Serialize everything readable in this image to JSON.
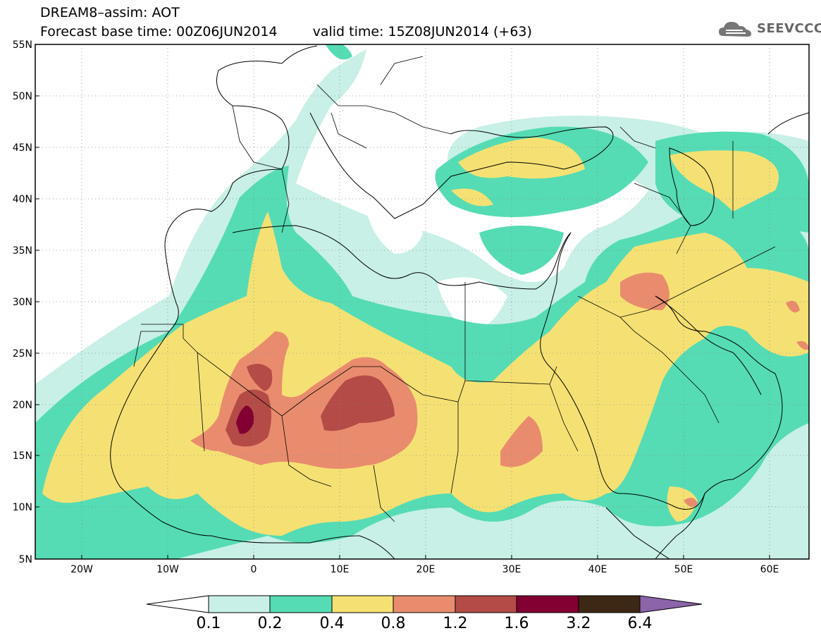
{
  "header": {
    "title": "DREAM8–assim: AOT",
    "base_time_label": "Forecast base time: 00Z06JUN2014",
    "valid_time_label": "valid time: 15Z08JUN2014 (+63)"
  },
  "logo": {
    "text": "SEEVCCC",
    "icon": "cloud-logo-icon"
  },
  "map": {
    "extent": {
      "lon": [
        -25,
        65
      ],
      "lat": [
        5,
        55
      ]
    },
    "lat_ticks": [
      "5N",
      "10N",
      "15N",
      "20N",
      "25N",
      "30N",
      "35N",
      "40N",
      "45N",
      "50N",
      "55N"
    ],
    "lon_ticks": [
      "20W",
      "10W",
      "0",
      "10E",
      "20E",
      "30E",
      "40E",
      "50E",
      "60E"
    ],
    "gridlines": "dotted"
  },
  "legend": {
    "labels": [
      "0.1",
      "0.2",
      "0.4",
      "0.8",
      "1.2",
      "1.6",
      "3.2",
      "6.4"
    ],
    "colors": [
      "#ffffff",
      "#c8f0e6",
      "#55dcb4",
      "#f5e173",
      "#e98c6e",
      "#b44b46",
      "#820032",
      "#3c2814",
      "#8c64aa"
    ]
  }
}
